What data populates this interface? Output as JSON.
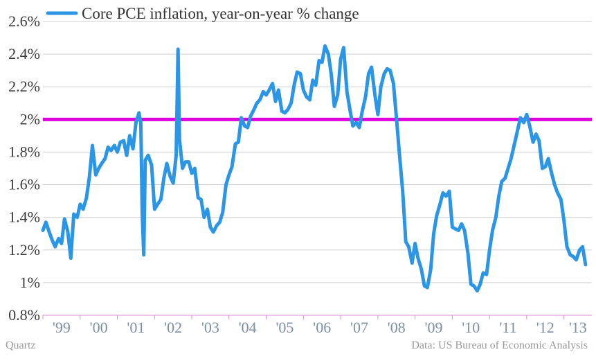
{
  "chart_data": {
    "type": "line",
    "title": "",
    "xlabel": "",
    "ylabel": "",
    "ylim": [
      0.8,
      2.6
    ],
    "y_ticks": [
      {
        "value": 0.8,
        "label": "0.8%"
      },
      {
        "value": 1.0,
        "label": "1%"
      },
      {
        "value": 1.2,
        "label": "1.2%"
      },
      {
        "value": 1.4,
        "label": "1.4%"
      },
      {
        "value": 1.6,
        "label": "1.6%"
      },
      {
        "value": 1.8,
        "label": "1.8%"
      },
      {
        "value": 2.0,
        "label": "2%"
      },
      {
        "value": 2.2,
        "label": "2.2%"
      },
      {
        "value": 2.4,
        "label": "2.4%"
      },
      {
        "value": 2.6,
        "label": "2.6%"
      }
    ],
    "x_range": [
      1999.0,
      2013.75
    ],
    "x_ticks": [
      {
        "value": 1999,
        "label": "'99"
      },
      {
        "value": 2000,
        "label": "'00"
      },
      {
        "value": 2001,
        "label": "'01"
      },
      {
        "value": 2002,
        "label": "'02"
      },
      {
        "value": 2003,
        "label": "'03"
      },
      {
        "value": 2004,
        "label": "'04"
      },
      {
        "value": 2005,
        "label": "'05"
      },
      {
        "value": 2006,
        "label": "'06"
      },
      {
        "value": 2007,
        "label": "'07"
      },
      {
        "value": 2008,
        "label": "'08"
      },
      {
        "value": 2009,
        "label": "'09"
      },
      {
        "value": 2010,
        "label": "'10"
      },
      {
        "value": 2011,
        "label": "'11"
      },
      {
        "value": 2012,
        "label": "'12"
      },
      {
        "value": 2013,
        "label": "'13"
      }
    ],
    "grid": true,
    "legend_position": "top-left",
    "reference_line": {
      "value": 2.0,
      "color": "#e000e0"
    },
    "series": [
      {
        "name": "Core PCE inflation, year-on-year % change",
        "color": "#2b95e6",
        "points": [
          [
            1999.0,
            1.32
          ],
          [
            1999.08,
            1.37
          ],
          [
            1999.17,
            1.31
          ],
          [
            1999.25,
            1.26
          ],
          [
            1999.33,
            1.22
          ],
          [
            1999.42,
            1.27
          ],
          [
            1999.5,
            1.24
          ],
          [
            1999.58,
            1.39
          ],
          [
            1999.67,
            1.31
          ],
          [
            1999.75,
            1.15
          ],
          [
            1999.83,
            1.42
          ],
          [
            1999.92,
            1.4
          ],
          [
            2000.0,
            1.48
          ],
          [
            2000.08,
            1.45
          ],
          [
            2000.17,
            1.52
          ],
          [
            2000.25,
            1.65
          ],
          [
            2000.33,
            1.84
          ],
          [
            2000.42,
            1.66
          ],
          [
            2000.5,
            1.7
          ],
          [
            2000.58,
            1.73
          ],
          [
            2000.67,
            1.76
          ],
          [
            2000.75,
            1.83
          ],
          [
            2000.83,
            1.81
          ],
          [
            2000.92,
            1.84
          ],
          [
            2001.0,
            1.8
          ],
          [
            2001.08,
            1.86
          ],
          [
            2001.17,
            1.87
          ],
          [
            2001.25,
            1.78
          ],
          [
            2001.33,
            1.9
          ],
          [
            2001.42,
            1.82
          ],
          [
            2001.5,
            1.98
          ],
          [
            2001.58,
            2.04
          ],
          [
            2001.63,
            1.98
          ],
          [
            2001.67,
            1.42
          ],
          [
            2001.71,
            1.17
          ],
          [
            2001.75,
            1.75
          ],
          [
            2001.83,
            1.78
          ],
          [
            2001.92,
            1.72
          ],
          [
            2002.0,
            1.45
          ],
          [
            2002.08,
            1.48
          ],
          [
            2002.17,
            1.51
          ],
          [
            2002.25,
            1.64
          ],
          [
            2002.33,
            1.73
          ],
          [
            2002.42,
            1.65
          ],
          [
            2002.5,
            1.61
          ],
          [
            2002.58,
            1.78
          ],
          [
            2002.63,
            2.43
          ],
          [
            2002.67,
            1.88
          ],
          [
            2002.75,
            1.7
          ],
          [
            2002.83,
            1.74
          ],
          [
            2002.92,
            1.74
          ],
          [
            2003.0,
            1.67
          ],
          [
            2003.08,
            1.7
          ],
          [
            2003.17,
            1.52
          ],
          [
            2003.25,
            1.51
          ],
          [
            2003.33,
            1.4
          ],
          [
            2003.42,
            1.45
          ],
          [
            2003.5,
            1.34
          ],
          [
            2003.58,
            1.31
          ],
          [
            2003.67,
            1.35
          ],
          [
            2003.75,
            1.37
          ],
          [
            2003.83,
            1.43
          ],
          [
            2003.92,
            1.6
          ],
          [
            2004.0,
            1.66
          ],
          [
            2004.08,
            1.71
          ],
          [
            2004.17,
            1.85
          ],
          [
            2004.25,
            1.86
          ],
          [
            2004.33,
            2.01
          ],
          [
            2004.42,
            1.96
          ],
          [
            2004.5,
            1.95
          ],
          [
            2004.58,
            2.02
          ],
          [
            2004.67,
            2.06
          ],
          [
            2004.75,
            2.1
          ],
          [
            2004.83,
            2.12
          ],
          [
            2004.92,
            2.17
          ],
          [
            2005.0,
            2.15
          ],
          [
            2005.08,
            2.18
          ],
          [
            2005.17,
            2.22
          ],
          [
            2005.25,
            2.11
          ],
          [
            2005.33,
            2.18
          ],
          [
            2005.42,
            2.05
          ],
          [
            2005.5,
            2.04
          ],
          [
            2005.58,
            2.06
          ],
          [
            2005.67,
            2.1
          ],
          [
            2005.75,
            2.21
          ],
          [
            2005.83,
            2.29
          ],
          [
            2005.92,
            2.28
          ],
          [
            2006.0,
            2.18
          ],
          [
            2006.08,
            2.14
          ],
          [
            2006.17,
            2.12
          ],
          [
            2006.25,
            2.24
          ],
          [
            2006.33,
            2.21
          ],
          [
            2006.42,
            2.36
          ],
          [
            2006.5,
            2.35
          ],
          [
            2006.58,
            2.45
          ],
          [
            2006.67,
            2.4
          ],
          [
            2006.75,
            2.27
          ],
          [
            2006.83,
            2.08
          ],
          [
            2006.92,
            2.15
          ],
          [
            2007.0,
            2.37
          ],
          [
            2007.08,
            2.44
          ],
          [
            2007.17,
            2.17
          ],
          [
            2007.25,
            2.06
          ],
          [
            2007.33,
            1.96
          ],
          [
            2007.42,
            1.98
          ],
          [
            2007.5,
            1.95
          ],
          [
            2007.58,
            2.05
          ],
          [
            2007.67,
            2.14
          ],
          [
            2007.75,
            2.28
          ],
          [
            2007.83,
            2.32
          ],
          [
            2007.92,
            2.15
          ],
          [
            2008.0,
            2.03
          ],
          [
            2008.08,
            2.2
          ],
          [
            2008.17,
            2.28
          ],
          [
            2008.25,
            2.31
          ],
          [
            2008.33,
            2.3
          ],
          [
            2008.42,
            2.22
          ],
          [
            2008.5,
            2.01
          ],
          [
            2008.58,
            1.79
          ],
          [
            2008.67,
            1.55
          ],
          [
            2008.75,
            1.25
          ],
          [
            2008.83,
            1.22
          ],
          [
            2008.92,
            1.12
          ],
          [
            2009.0,
            1.24
          ],
          [
            2009.08,
            1.15
          ],
          [
            2009.17,
            1.08
          ],
          [
            2009.25,
            0.98
          ],
          [
            2009.33,
            0.97
          ],
          [
            2009.42,
            1.08
          ],
          [
            2009.5,
            1.3
          ],
          [
            2009.58,
            1.41
          ],
          [
            2009.67,
            1.48
          ],
          [
            2009.75,
            1.55
          ],
          [
            2009.83,
            1.53
          ],
          [
            2009.92,
            1.56
          ],
          [
            2010.0,
            1.34
          ],
          [
            2010.08,
            1.33
          ],
          [
            2010.17,
            1.32
          ],
          [
            2010.25,
            1.36
          ],
          [
            2010.33,
            1.32
          ],
          [
            2010.42,
            1.18
          ],
          [
            2010.5,
            0.99
          ],
          [
            2010.58,
            0.98
          ],
          [
            2010.67,
            0.95
          ],
          [
            2010.75,
            0.99
          ],
          [
            2010.83,
            1.06
          ],
          [
            2010.92,
            1.05
          ],
          [
            2011.0,
            1.2
          ],
          [
            2011.08,
            1.32
          ],
          [
            2011.17,
            1.4
          ],
          [
            2011.25,
            1.53
          ],
          [
            2011.33,
            1.62
          ],
          [
            2011.42,
            1.64
          ],
          [
            2011.5,
            1.7
          ],
          [
            2011.58,
            1.76
          ],
          [
            2011.67,
            1.85
          ],
          [
            2011.75,
            1.93
          ],
          [
            2011.83,
            2.01
          ],
          [
            2011.92,
            1.98
          ],
          [
            2012.0,
            2.03
          ],
          [
            2012.08,
            1.96
          ],
          [
            2012.17,
            1.86
          ],
          [
            2012.25,
            1.91
          ],
          [
            2012.33,
            1.87
          ],
          [
            2012.42,
            1.7
          ],
          [
            2012.5,
            1.71
          ],
          [
            2012.58,
            1.76
          ],
          [
            2012.67,
            1.67
          ],
          [
            2012.75,
            1.6
          ],
          [
            2012.83,
            1.55
          ],
          [
            2012.92,
            1.51
          ],
          [
            2013.0,
            1.38
          ],
          [
            2013.08,
            1.22
          ],
          [
            2013.17,
            1.17
          ],
          [
            2013.25,
            1.16
          ],
          [
            2013.33,
            1.14
          ],
          [
            2013.42,
            1.2
          ],
          [
            2013.5,
            1.22
          ],
          [
            2013.58,
            1.11
          ]
        ]
      }
    ]
  },
  "footer": {
    "credit": "Quartz",
    "source": "Data: US Bureau of Economic Analysis"
  }
}
